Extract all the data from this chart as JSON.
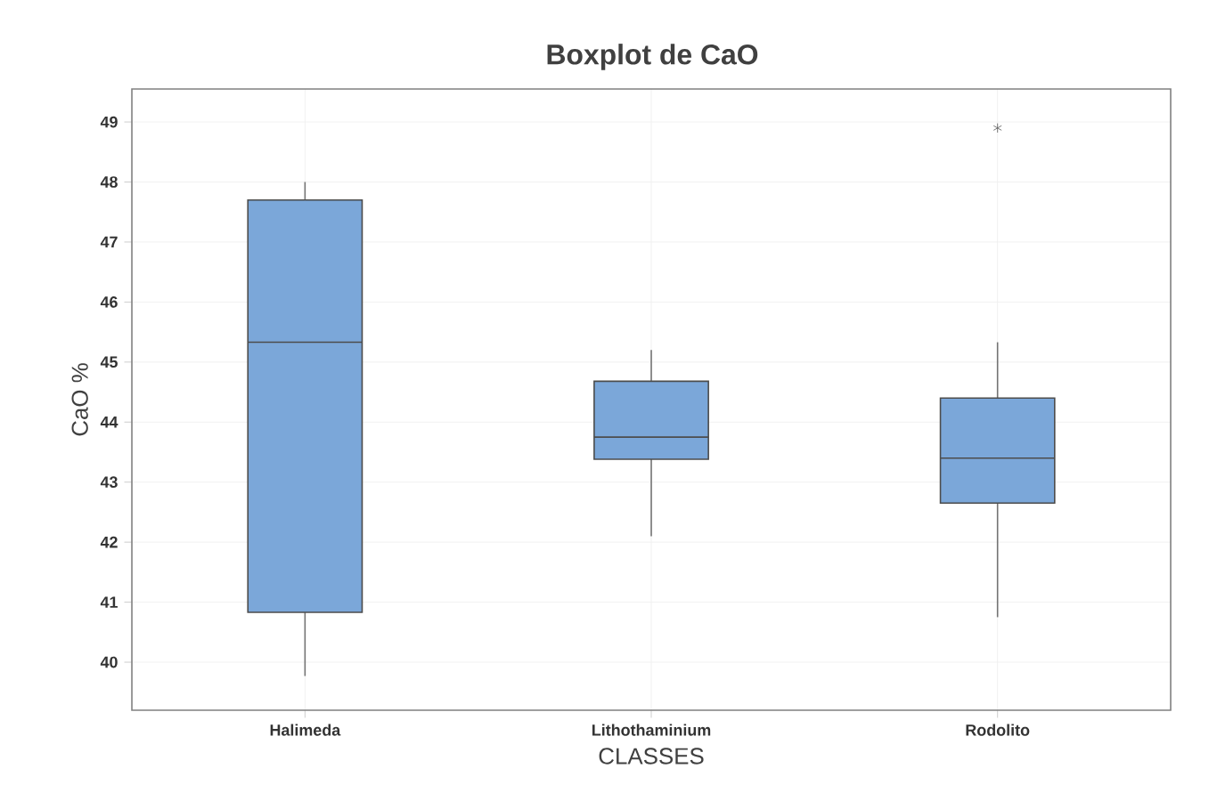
{
  "chart_data": {
    "type": "box",
    "title": "Boxplot de CaO",
    "xlabel": "CLASSES",
    "ylabel": "CaO %",
    "categories": [
      "Halimeda",
      "Lithothaminium",
      "Rodolito"
    ],
    "boxes": [
      {
        "low": 39.77,
        "q1": 40.83,
        "median": 45.33,
        "q3": 47.7,
        "high": 48.0
      },
      {
        "low": 42.1,
        "q1": 43.38,
        "median": 43.75,
        "q3": 44.68,
        "high": 45.2
      },
      {
        "low": 40.75,
        "q1": 42.65,
        "median": 43.4,
        "q3": 44.4,
        "high": 45.33,
        "outliers": [
          48.9
        ]
      }
    ],
    "color": "#7ba7d9",
    "ylim": [
      39.2,
      49.55
    ],
    "yticks": [
      40,
      41,
      42,
      43,
      44,
      45,
      46,
      47,
      48,
      49
    ],
    "grid": true,
    "marker": "star"
  }
}
